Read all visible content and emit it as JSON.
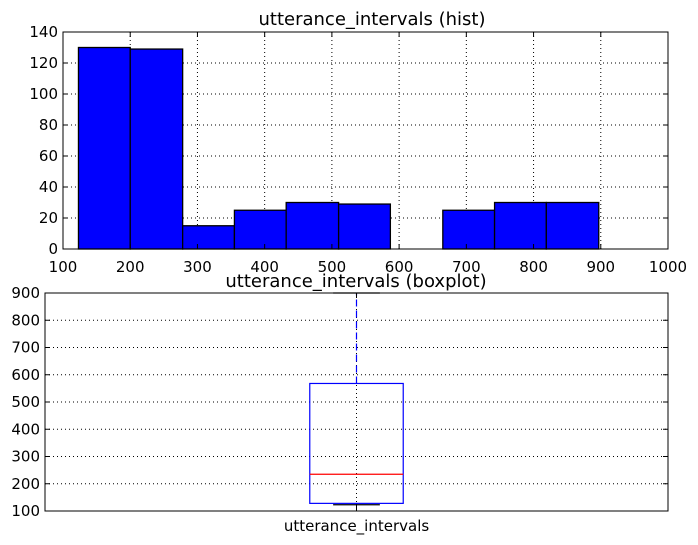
{
  "chart_data": [
    {
      "type": "bar",
      "title": "utterance_intervals (hist)",
      "xlim": [
        100,
        1000
      ],
      "ylim": [
        0,
        140
      ],
      "xticks": [
        100,
        200,
        300,
        400,
        500,
        600,
        700,
        800,
        900,
        1000
      ],
      "yticks": [
        0,
        20,
        40,
        60,
        80,
        100,
        120,
        140
      ],
      "grid": true,
      "bar_color": "#0000ff",
      "bins": [
        {
          "x0": 123,
          "x1": 200,
          "count": 130
        },
        {
          "x0": 200,
          "x1": 278,
          "count": 129
        },
        {
          "x0": 278,
          "x1": 355,
          "count": 15
        },
        {
          "x0": 355,
          "x1": 432,
          "count": 25
        },
        {
          "x0": 432,
          "x1": 510,
          "count": 30
        },
        {
          "x0": 510,
          "x1": 587,
          "count": 29
        },
        {
          "x0": 587,
          "x1": 665,
          "count": 0
        },
        {
          "x0": 665,
          "x1": 742,
          "count": 25
        },
        {
          "x0": 742,
          "x1": 819,
          "count": 30
        },
        {
          "x0": 819,
          "x1": 897,
          "count": 30
        }
      ]
    },
    {
      "type": "boxplot",
      "title": "utterance_intervals (boxplot)",
      "categories": [
        "utterance_intervals"
      ],
      "ylim": [
        100,
        900
      ],
      "yticks": [
        100,
        200,
        300,
        400,
        500,
        600,
        700,
        800,
        900
      ],
      "grid": true,
      "box": {
        "whisker_low": 123,
        "q1": 128,
        "median": 235,
        "q3": 568,
        "whisker_high": 900
      },
      "box_color": "#0000ff",
      "median_color": "#ff0000"
    }
  ]
}
